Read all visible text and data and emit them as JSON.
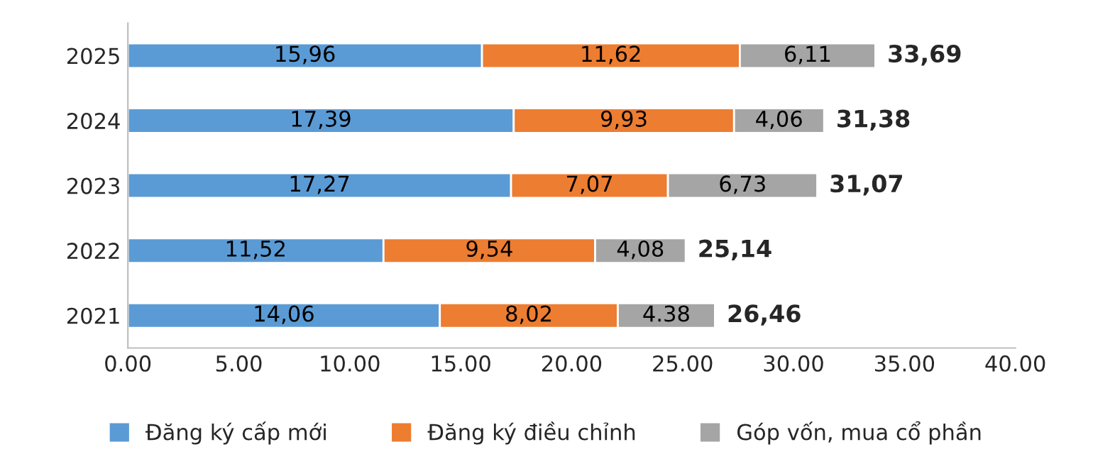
{
  "chart_data": {
    "type": "bar",
    "orientation": "horizontal",
    "stacked": true,
    "categories": [
      "2025",
      "2024",
      "2023",
      "2022",
      "2021"
    ],
    "series": [
      {
        "name": "Đăng ký cấp mới",
        "color": "#5b9bd5",
        "values": [
          15.96,
          17.39,
          17.27,
          11.52,
          14.06
        ],
        "value_labels": [
          "15,96",
          "17,39",
          "17,27",
          "11,52",
          "14,06"
        ]
      },
      {
        "name": "Đăng ký điều chỉnh",
        "color": "#ed7d31",
        "values": [
          11.62,
          9.93,
          7.07,
          9.54,
          8.02
        ],
        "value_labels": [
          "11,62",
          "9,93",
          "7,07",
          "9,54",
          "8,02"
        ]
      },
      {
        "name": "Góp vốn, mua cổ phần",
        "color": "#a5a5a5",
        "values": [
          6.11,
          4.06,
          6.73,
          4.08,
          4.38
        ],
        "value_labels": [
          "6,11",
          "4,06",
          "6,73",
          "4,08",
          "4.38"
        ]
      }
    ],
    "totals": [
      "33,69",
      "31,38",
      "31,07",
      "25,14",
      "26,46"
    ],
    "xlim": [
      0,
      40
    ],
    "xticks": [
      {
        "value": 0,
        "label": "0.00"
      },
      {
        "value": 5,
        "label": "5.00"
      },
      {
        "value": 10,
        "label": "10.00"
      },
      {
        "value": 15,
        "label": "15.00"
      },
      {
        "value": 20,
        "label": "20.00"
      },
      {
        "value": 25,
        "label": "25.00"
      },
      {
        "value": 30,
        "label": "30.00"
      },
      {
        "value": 35,
        "label": "35.00"
      },
      {
        "value": 40,
        "label": "40.00"
      }
    ],
    "grid": false,
    "legend": "bottom"
  }
}
